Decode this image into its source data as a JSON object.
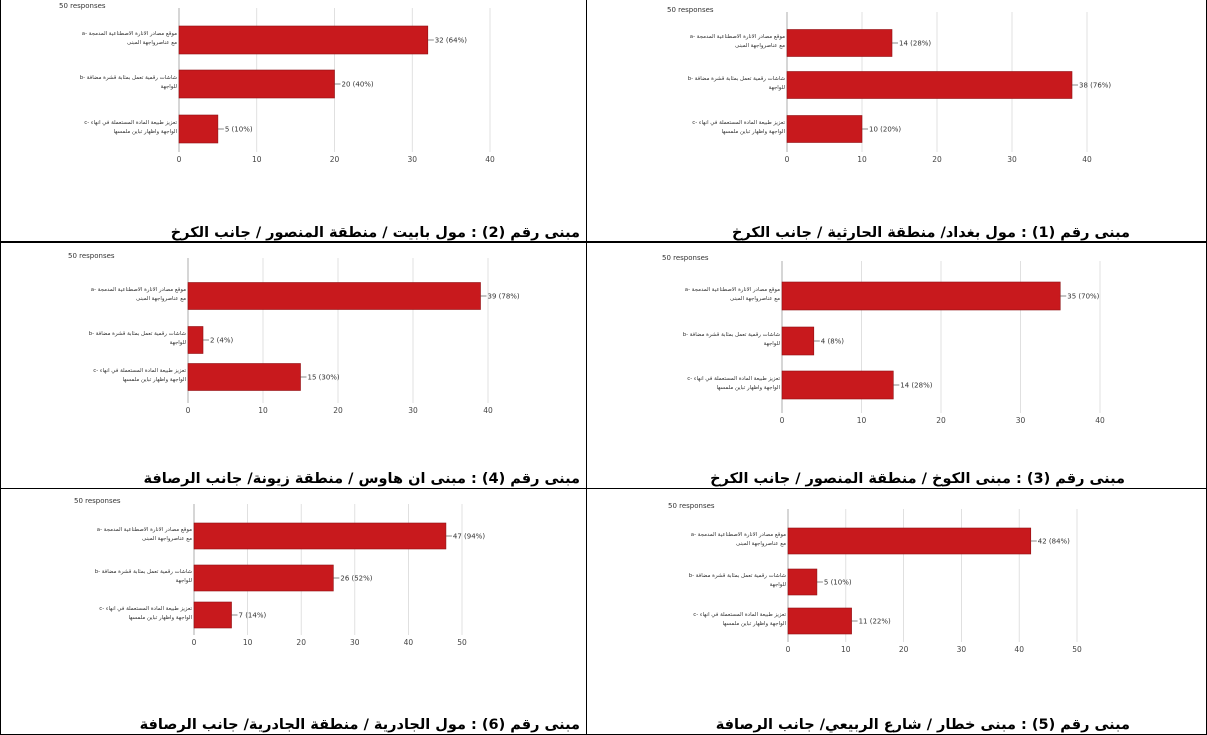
{
  "responses_label": "50 responses",
  "colors": {
    "bar": "#c8191d",
    "bar_stroke": "#8f1013",
    "grid": "#d9d9d9",
    "axis_text": "#444444",
    "label_text": "#333333"
  },
  "captions": [
    "مبنى رقم (2) : مول بابيت / منطقة المنصور / جانب الكرخ",
    "مبنى رقم (1) : مول بغداد/ منطقة الحارثية / جانب الكرخ",
    "مبنى رقم (4) : مبنى ان هاوس / منطقة زيونة/ جانب الرصافة",
    "مبنى رقم (3) : مبنى الكوخ / منطقة المنصور / جانب الكرخ",
    "مبنى رقم (6) : مول الجادرية / منطقة الجادرية/ جانب الرصافة",
    "مبنى رقم (5) : مبنى خطار / شارع الربيعي/ جانب الرصافة"
  ],
  "chart_data": [
    {
      "type": "bar",
      "orientation": "horizontal",
      "building": "مبنى رقم (2)",
      "subtitle": "50 responses",
      "categories": [
        [
          "a- موقع مصادر الانارة الاصطناعية المدمجة",
          "مع عناصرواجهة المبنى"
        ],
        [
          "b- شاشات رقمية تعمل بمثابة قشرة مضافة",
          "للواجهة"
        ],
        [
          "c- تعزيز طبيعة المادة المستعملة في انهاء",
          "الواجهة واظهار تباين ملمسها"
        ]
      ],
      "values": [
        32,
        20,
        5
      ],
      "value_labels": [
        "32 (64%)",
        "20 (40%)",
        "5 (10%)"
      ],
      "xlim": [
        0,
        40
      ],
      "ticks": [
        0,
        10,
        20,
        30,
        40
      ]
    },
    {
      "type": "bar",
      "orientation": "horizontal",
      "building": "مبنى رقم (1)",
      "subtitle": "50 responses",
      "categories": [
        [
          "a- موقع مصادر الانارة الاصطناعية المدمجة",
          "مع عناصرواجهة المبنى"
        ],
        [
          "b- شاشات رقمية تعمل بمثابة قشرة مضافة",
          "للواجهة"
        ],
        [
          "c- تعزيز طبيعة المادة المستعملة في انهاء",
          "الواجهة واظهار تباين ملمسها"
        ]
      ],
      "values": [
        14,
        38,
        10
      ],
      "value_labels": [
        "14 (28%)",
        "38 (76%)",
        "10 (20%)"
      ],
      "xlim": [
        0,
        40
      ],
      "ticks": [
        0,
        10,
        20,
        30,
        40
      ]
    },
    {
      "type": "bar",
      "orientation": "horizontal",
      "building": "مبنى رقم (4)",
      "subtitle": "50 responses",
      "categories": [
        [
          "a- موقع مصادر الانارة الاصطناعية المدمجة",
          "مع عناصرواجهة المبنى"
        ],
        [
          "b- شاشات رقمية تعمل بمثابة قشرة مضافة",
          "للواجهة"
        ],
        [
          "c- تعزيز طبيعة المادة المستعملة في انهاء",
          "الواجهة واظهار تباين ملمسها"
        ]
      ],
      "values": [
        39,
        2,
        15
      ],
      "value_labels": [
        "39 (78%)",
        "2 (4%)",
        "15 (30%)"
      ],
      "xlim": [
        0,
        40
      ],
      "ticks": [
        0,
        10,
        20,
        30,
        40
      ]
    },
    {
      "type": "bar",
      "orientation": "horizontal",
      "building": "مبنى رقم (3)",
      "subtitle": "50 responses",
      "categories": [
        [
          "a- موقع مصادر الانارة الاصطناعية المدمجة",
          "مع عناصرواجهة المبنى"
        ],
        [
          "b- شاشات رقمية تعمل بمثابة قشرة مضافة",
          "للواجهة"
        ],
        [
          "c- تعزيز طبيعة المادة المستعملة في انهاء",
          "الواجهة واظهار تباين ملمسها"
        ]
      ],
      "values": [
        35,
        4,
        14
      ],
      "value_labels": [
        "35 (70%)",
        "4 (8%)",
        "14 (28%)"
      ],
      "xlim": [
        0,
        40
      ],
      "ticks": [
        0,
        10,
        20,
        30,
        40
      ]
    },
    {
      "type": "bar",
      "orientation": "horizontal",
      "building": "مبنى رقم (6)",
      "subtitle": "50 responses",
      "categories": [
        [
          "a- موقع مصادر الانارة الاصطناعية المدمجة",
          "مع عناصرواجهة المبنى"
        ],
        [
          "b- شاشات رقمية تعمل بمثابة قشرة مضافة",
          "للواجهة"
        ],
        [
          "c- تعزيز طبيعة المادة المستعملة في انهاء",
          "الواجهة واظهار تباين ملمسها"
        ]
      ],
      "values": [
        47,
        26,
        7
      ],
      "value_labels": [
        "47 (94%)",
        "26 (52%)",
        "7 (14%)"
      ],
      "xlim": [
        0,
        50
      ],
      "ticks": [
        0,
        10,
        20,
        30,
        40,
        50
      ]
    },
    {
      "type": "bar",
      "orientation": "horizontal",
      "building": "مبنى رقم (5)",
      "subtitle": "50 responses",
      "categories": [
        [
          "a- موقع مصادر الانارة الاصطناعية المدمجة",
          "مع عناصرواجهة المبنى"
        ],
        [
          "b- شاشات رقمية تعمل بمثابة قشرة مضافة",
          "للواجهة"
        ],
        [
          "c- تعزيز طبيعة المادة المستعملة في انهاء",
          "الواجهة واظهار تباين ملمسها"
        ]
      ],
      "values": [
        42,
        5,
        11
      ],
      "value_labels": [
        "42 (84%)",
        "5 (10%)",
        "11 (22%)"
      ],
      "xlim": [
        0,
        50
      ],
      "ticks": [
        0,
        10,
        20,
        30,
        40,
        50
      ]
    }
  ]
}
